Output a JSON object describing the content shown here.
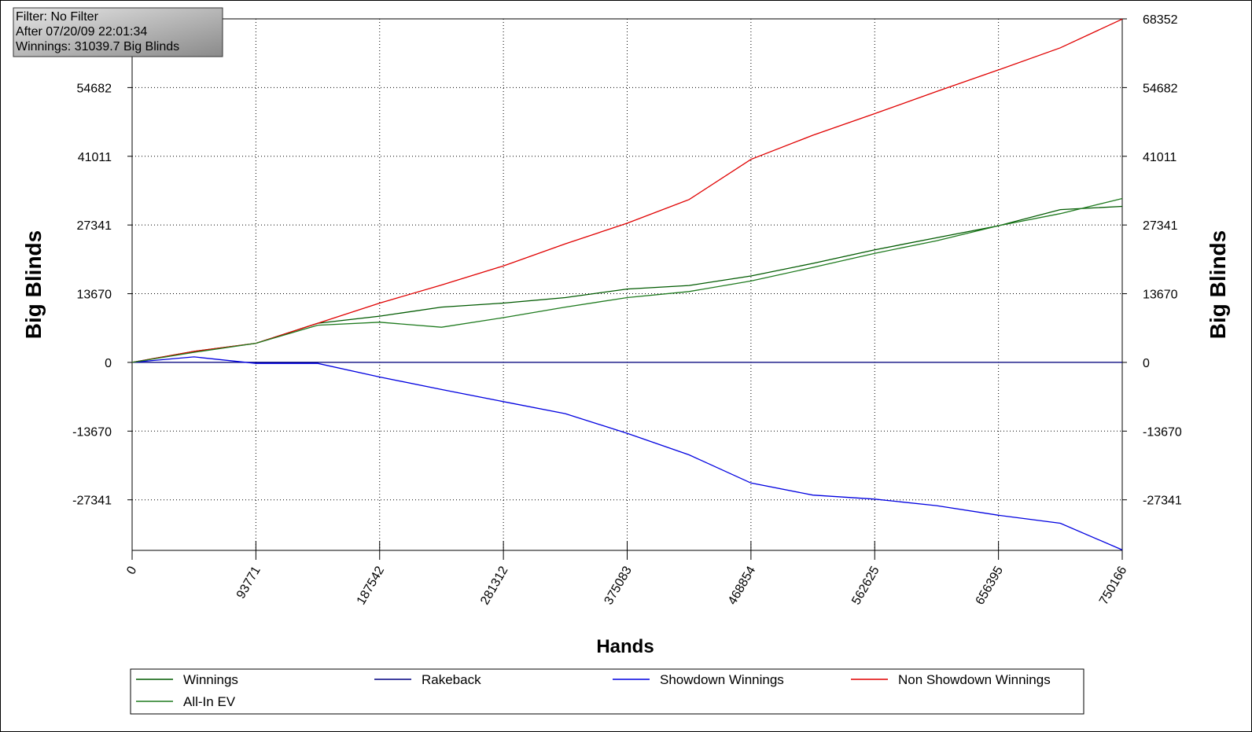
{
  "chart_data": {
    "type": "line",
    "x_label": "Hands",
    "y_label": "Big Blinds",
    "annotations": [
      "Filter: No Filter",
      "After 07/20/09 22:01:34",
      "Winnings: 31039.7 Big Blinds"
    ],
    "x": [
      0,
      46885,
      93771,
      140656,
      187542,
      234427,
      281312,
      328198,
      375083,
      421968,
      468854,
      515739,
      562625,
      609510,
      656395,
      703281,
      750166
    ],
    "xlim": [
      0,
      750166
    ],
    "xticks": [
      0,
      93771,
      187542,
      281312,
      375083,
      468854,
      562625,
      656395,
      750166
    ],
    "ylim": [
      -37400,
      68352
    ],
    "yticks": [
      -27341,
      -13670,
      0,
      13670,
      27341,
      41011,
      54682,
      68352
    ],
    "grid": true,
    "series": [
      {
        "name": "Winnings",
        "color": "#005a00",
        "values": [
          0,
          2200,
          3800,
          7800,
          9200,
          11000,
          11800,
          12900,
          14600,
          15300,
          17200,
          19700,
          22400,
          24800,
          27200,
          30400,
          31040
        ]
      },
      {
        "name": "Rakeback",
        "color": "#000080",
        "values": [
          0,
          0,
          0,
          0,
          0,
          0,
          0,
          0,
          0,
          0,
          0,
          0,
          0,
          0,
          0,
          0,
          0
        ]
      },
      {
        "name": "Showdown Winnings",
        "color": "#0000e0",
        "values": [
          0,
          1100,
          -200,
          -200,
          -2900,
          -5400,
          -7800,
          -10200,
          -14100,
          -18400,
          -24000,
          -26400,
          -27200,
          -28500,
          -30400,
          -32000,
          -37300
        ]
      },
      {
        "name": "Non Showdown Winnings",
        "color": "#e00000",
        "values": [
          0,
          2200,
          3800,
          7800,
          11800,
          15400,
          19200,
          23600,
          27700,
          32400,
          40400,
          45200,
          49500,
          53900,
          58200,
          62600,
          68300
        ]
      },
      {
        "name": "All-In EV",
        "color": "#1e7a1e",
        "values": [
          0,
          2000,
          3800,
          7400,
          8000,
          7000,
          8900,
          11000,
          12900,
          14100,
          16200,
          18900,
          21700,
          24200,
          27200,
          29600,
          32600
        ]
      }
    ]
  }
}
